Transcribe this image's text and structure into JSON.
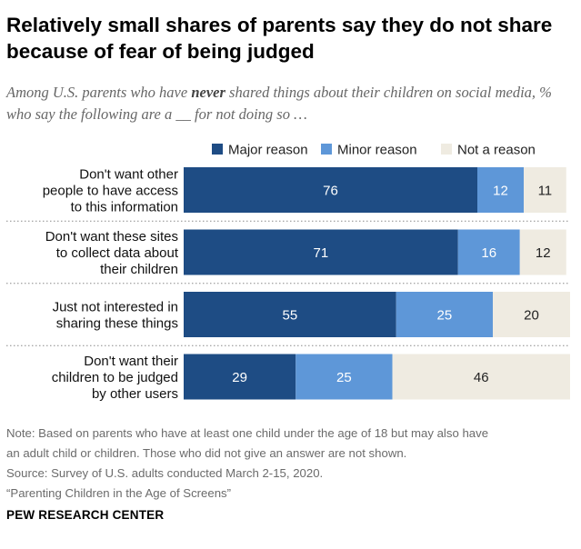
{
  "title": "Relatively small shares of parents say they do not share because of fear of being judged",
  "subtitle": {
    "part1": "Among U.S. parents who have ",
    "emph": "never",
    "part2": " shared things about their children on social media, % who say the following are a __ for not doing so …"
  },
  "colors": {
    "major": "#1e4c84",
    "minor": "#5e97d8",
    "not": "#efebe1",
    "divider": "#8a8a8a"
  },
  "chart_data": {
    "type": "bar",
    "orientation": "horizontal",
    "stacked": true,
    "legend_position": "top",
    "categories": [
      [
        "Don't want other",
        "people to have access",
        "to this information"
      ],
      [
        "Don't want these sites",
        "to collect data about",
        "their children"
      ],
      [
        "Just not interested in",
        "sharing these things"
      ],
      [
        "Don't want their",
        "children to be judged",
        "by other users"
      ]
    ],
    "series": [
      {
        "name": "Major reason",
        "color": "#1e4c84",
        "values": [
          76,
          71,
          55,
          29
        ]
      },
      {
        "name": "Minor reason",
        "color": "#5e97d8",
        "values": [
          12,
          16,
          25,
          25
        ]
      },
      {
        "name": "Not a reason",
        "color": "#efebe1",
        "values": [
          11,
          12,
          20,
          46
        ]
      }
    ],
    "xlim": [
      0,
      100
    ],
    "grid": false
  },
  "notes": {
    "note_line1": "Note: Based on parents who have at least one child under the age of 18 but may also have",
    "note_line2": "an adult child or children. Those who did not give an answer are not shown.",
    "source": "Source: Survey of U.S. adults conducted March 2-15, 2020.",
    "report": "“Parenting Children in the Age of Screens”"
  },
  "brand": "PEW RESEARCH CENTER"
}
